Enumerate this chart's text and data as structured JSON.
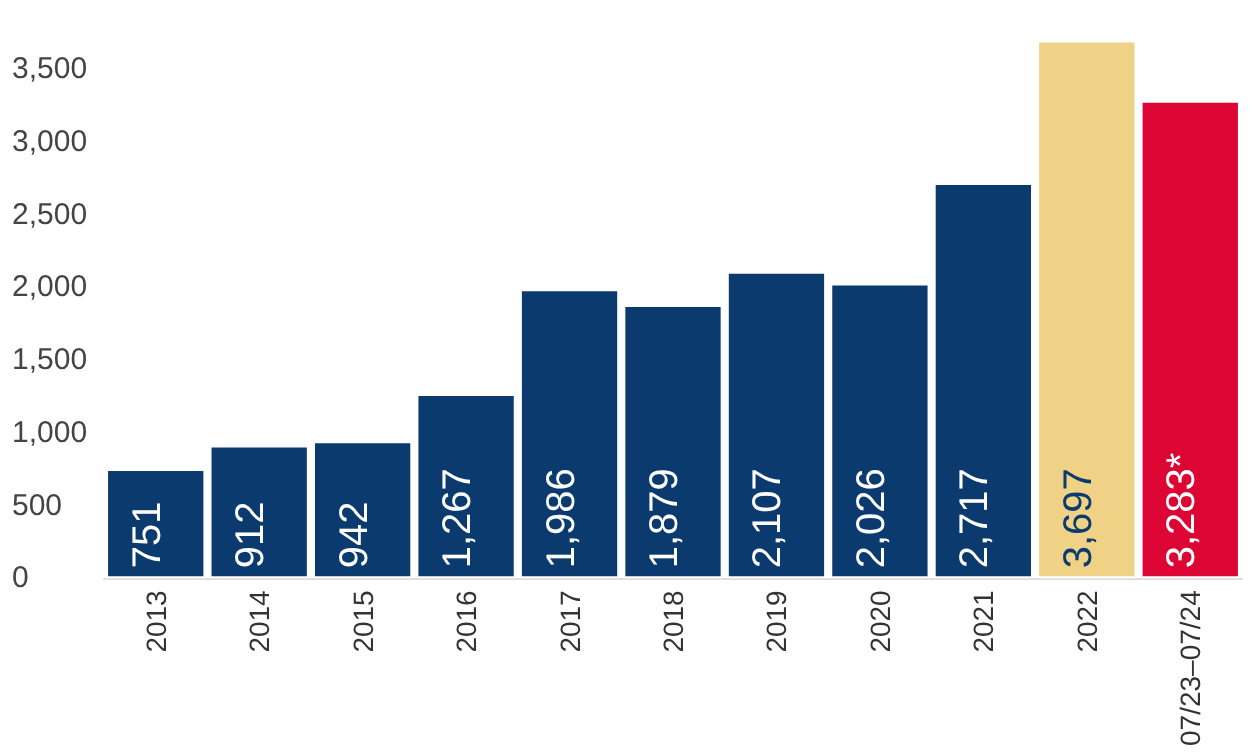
{
  "chart_data": {
    "type": "bar",
    "categories": [
      "2013",
      "2014",
      "2015",
      "2016",
      "2017",
      "2018",
      "2019",
      "2020",
      "2021",
      "2022",
      "07/23–07/24"
    ],
    "values": [
      751,
      912,
      942,
      1267,
      1986,
      1879,
      2107,
      2026,
      2717,
      3697,
      3283
    ],
    "colors": [
      "#0b3a6f",
      "#0b3a6f",
      "#0b3a6f",
      "#0b3a6f",
      "#0b3a6f",
      "#0b3a6f",
      "#0b3a6f",
      "#0b3a6f",
      "#0b3a6f",
      "#efd285",
      "#dc0533"
    ],
    "value_labels": [
      "751",
      "912",
      "942",
      "1,267",
      "1,986",
      "1,879",
      "2,107",
      "2,026",
      "2,717",
      "3,697",
      "3,283*"
    ],
    "ylim": [
      0,
      3700
    ],
    "yticks": [
      {
        "value": 0,
        "label": "0"
      },
      {
        "value": 500,
        "label": "500"
      },
      {
        "value": 1000,
        "label": "1,000"
      },
      {
        "value": 1500,
        "label": "1,500"
      },
      {
        "value": 2000,
        "label": "2,000"
      },
      {
        "value": 2500,
        "label": "2,500"
      },
      {
        "value": 3000,
        "label": "3,000"
      },
      {
        "value": 3500,
        "label": "3,500"
      }
    ],
    "grid": false
  }
}
